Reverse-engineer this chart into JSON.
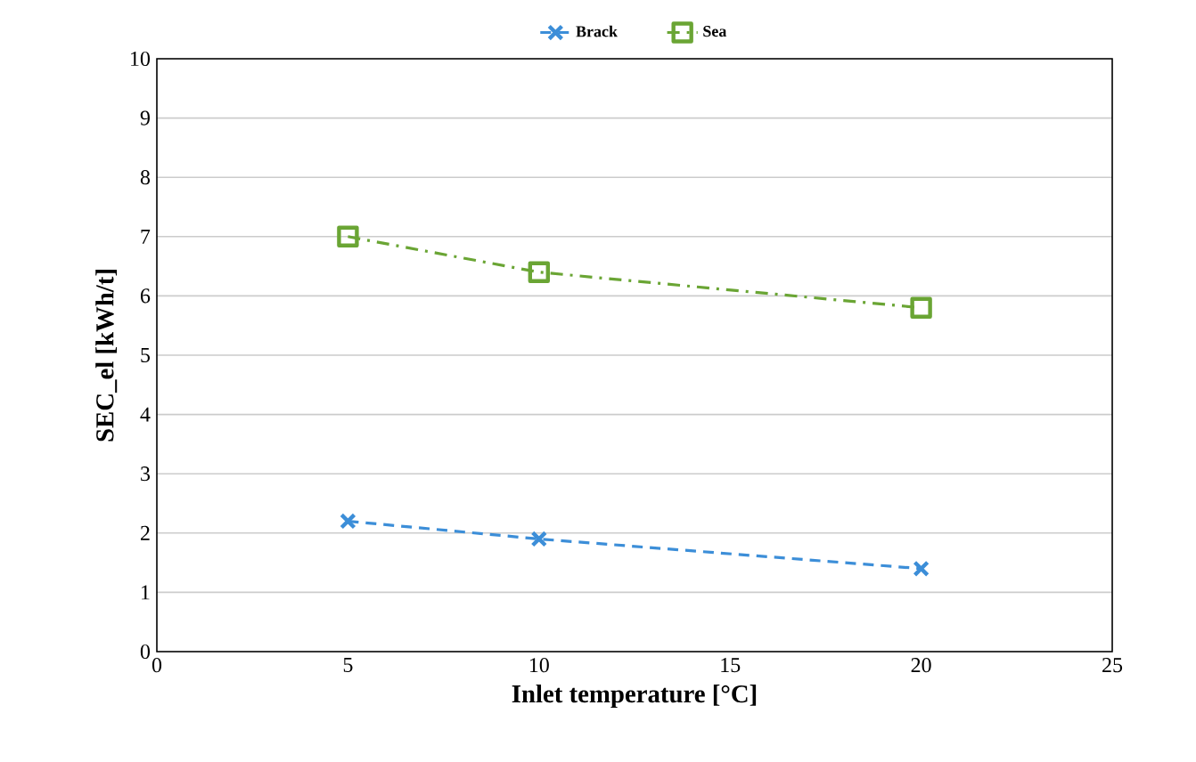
{
  "chart_data": {
    "type": "line",
    "xlabel": "Inlet temperature [°C]",
    "ylabel": "SEC_el  [kWh/t]",
    "x": [
      5,
      10,
      20
    ],
    "series": [
      {
        "name": "Brack",
        "color": "#3c8ed8",
        "values": [
          2.2,
          1.9,
          1.4
        ],
        "marker": "cross",
        "line_style": "dashed"
      },
      {
        "name": "Sea",
        "color": "#6aa534",
        "values": [
          7.0,
          6.4,
          5.8
        ],
        "marker": "square",
        "line_style": "dashdot"
      }
    ],
    "xlim": [
      0,
      25
    ],
    "xticks": [
      0,
      5,
      10,
      15,
      20,
      25
    ],
    "ylim": [
      0,
      10
    ],
    "yticks": [
      0,
      1,
      2,
      3,
      4,
      5,
      6,
      7,
      8,
      9,
      10
    ],
    "grid": "y",
    "legend": "top"
  }
}
